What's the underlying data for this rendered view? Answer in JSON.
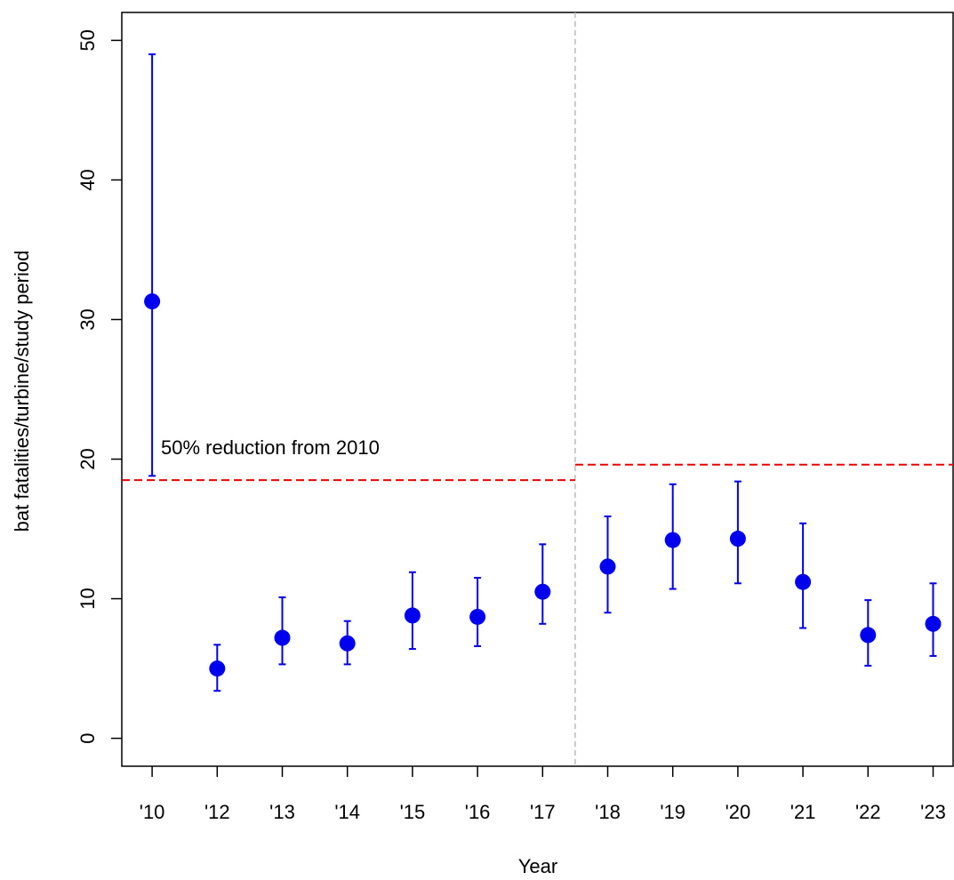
{
  "chart_data": {
    "type": "errorbar",
    "x_label": "Year",
    "y_label": "bat fatalities/turbine/study period",
    "categories": [
      "'10",
      "'12",
      "'13",
      "'14",
      "'15",
      "'16",
      "'17",
      "'18",
      "'19",
      "'20",
      "'21",
      "'22",
      "'23"
    ],
    "series": [
      {
        "color": "#0000ee",
        "values": [
          31.3,
          5.0,
          7.2,
          6.8,
          8.8,
          8.7,
          10.5,
          12.3,
          14.2,
          14.3,
          11.2,
          7.4,
          8.2
        ],
        "lower": [
          18.8,
          3.4,
          5.3,
          5.3,
          6.4,
          6.6,
          8.2,
          9.0,
          10.7,
          11.1,
          7.9,
          5.2,
          5.9
        ],
        "upper": [
          49.0,
          6.7,
          10.1,
          8.4,
          11.9,
          11.5,
          13.9,
          15.9,
          18.2,
          18.4,
          15.4,
          9.9,
          11.1
        ]
      }
    ],
    "reference_lines": [
      {
        "value": 18.5,
        "color": "#ee0000"
      },
      {
        "value": 19.6,
        "color": "#ee0000"
      }
    ],
    "annotation": "50% reduction from 2010",
    "ylim": [
      -2,
      52
    ],
    "yticks": [
      0,
      10,
      20,
      30,
      40,
      50
    ]
  }
}
